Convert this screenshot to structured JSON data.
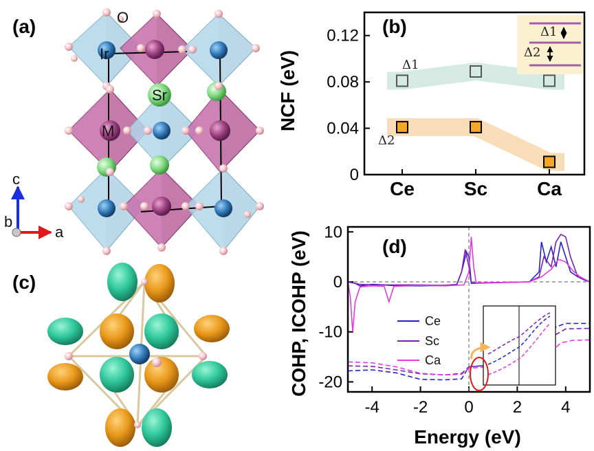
{
  "panels": {
    "a": {
      "label": "(a)",
      "atom_labels": {
        "oxygen": "O",
        "iridium": "Ir",
        "strontium": "Sr",
        "metal": "M"
      },
      "axes": {
        "c": "c",
        "b": "b",
        "a": "a"
      }
    },
    "b": {
      "label": "(b)"
    },
    "c": {
      "label": "(c)"
    },
    "d": {
      "label": "(d)"
    }
  },
  "colors": {
    "octa_blue": "#9ec8de",
    "octa_purple": "#b55a97",
    "ir_blue": "#2f78b8",
    "sr_green": "#7ed87e",
    "oxygen_pink": "#f2c2c8",
    "orbital_orange": "#e8991a",
    "orbital_teal": "#2ec79a",
    "ce_line": "#2323c8",
    "sc_line": "#7a1fb8",
    "ca_line": "#e33ae0",
    "delta1_band": "#cfe8df",
    "delta2_band": "#f8d9b0",
    "inset_bg": "#fbf1d0",
    "level_purple": "#a55ab0"
  },
  "chart_data": [
    {
      "type": "scatter",
      "panel": "b",
      "categories": [
        "Ce",
        "Sc",
        "Ca"
      ],
      "ylabel": "NCF (eV)",
      "ylim": [
        0,
        0.14
      ],
      "yticks": [
        "0",
        "0.04",
        "0.08",
        "0.12"
      ],
      "series": [
        {
          "name": "Δ1",
          "values": [
            0.081,
            0.089,
            0.081
          ],
          "color": "#808080"
        },
        {
          "name": "Δ2",
          "values": [
            0.041,
            0.041,
            0.011
          ],
          "color": "#f5a623"
        }
      ],
      "inset_labels": [
        "Δ1",
        "Δ2"
      ]
    },
    {
      "type": "line",
      "panel": "d",
      "xlabel": "Energy (eV)",
      "ylabel": "COHP, ICOHP (eV)",
      "xlim": [
        -5,
        5
      ],
      "ylim": [
        -22,
        11
      ],
      "xticks": [
        "-4",
        "-2",
        "0",
        "2",
        "4"
      ],
      "yticks": [
        "10",
        "0",
        "-10",
        "-20"
      ],
      "legend": [
        "Ce",
        "Sc",
        "Ca"
      ],
      "series": [
        {
          "name": "Ce",
          "color": "#2323c8",
          "cohp": [
            [
              -5,
              0
            ],
            [
              -4.7,
              -0.3
            ],
            [
              -4.5,
              -0.8
            ],
            [
              -4,
              -0.5
            ],
            [
              -3.5,
              -0.6
            ],
            [
              -3,
              -0.8
            ],
            [
              -2,
              -0.8
            ],
            [
              -1,
              -0.7
            ],
            [
              -0.5,
              -0.6
            ],
            [
              -0.3,
              2
            ],
            [
              -0.1,
              6
            ],
            [
              0,
              5
            ],
            [
              0.1,
              -0.2
            ],
            [
              2.5,
              0
            ],
            [
              2.9,
              2
            ],
            [
              3,
              8
            ],
            [
              3.2,
              4
            ],
            [
              3.4,
              7
            ],
            [
              3.6,
              3
            ],
            [
              3.8,
              8
            ],
            [
              4,
              5
            ],
            [
              4.2,
              2
            ],
            [
              4.5,
              1
            ],
            [
              4.8,
              0.3
            ],
            [
              5,
              0
            ]
          ],
          "icohp": [
            [
              -5,
              -17.8
            ],
            [
              -4,
              -17.6
            ],
            [
              -3,
              -18.2
            ],
            [
              -2,
              -19.5
            ],
            [
              -1,
              -19.6
            ],
            [
              -0.3,
              -19.4
            ],
            [
              0,
              -17
            ],
            [
              1,
              -16.6
            ],
            [
              2,
              -16.5
            ],
            [
              2.8,
              -16.5
            ],
            [
              3.2,
              -13
            ],
            [
              3.6,
              -9
            ],
            [
              4,
              -8.3
            ],
            [
              5,
              -8.3
            ]
          ]
        },
        {
          "name": "Sc",
          "color": "#7a1fb8",
          "cohp": [
            [
              -5,
              0
            ],
            [
              -4.5,
              -0.5
            ],
            [
              -4,
              -0.6
            ],
            [
              -3,
              -0.6
            ],
            [
              -2,
              -0.6
            ],
            [
              -1,
              -0.7
            ],
            [
              -0.5,
              -0.5
            ],
            [
              -0.3,
              2
            ],
            [
              -0.15,
              6.5
            ],
            [
              0,
              3
            ],
            [
              0.1,
              -0.3
            ],
            [
              2.5,
              0
            ],
            [
              2.9,
              1
            ],
            [
              3.1,
              5
            ],
            [
              3.4,
              3
            ],
            [
              3.6,
              8
            ],
            [
              3.8,
              9.5
            ],
            [
              4,
              9
            ],
            [
              4.2,
              5
            ],
            [
              4.5,
              1
            ],
            [
              5,
              0
            ]
          ],
          "icohp": [
            [
              -5,
              -16.8
            ],
            [
              -4,
              -16.9
            ],
            [
              -3,
              -17.6
            ],
            [
              -2,
              -18.4
            ],
            [
              -1,
              -18.6
            ],
            [
              -0.3,
              -18.3
            ],
            [
              0,
              -17
            ],
            [
              1,
              -16.6
            ],
            [
              2,
              -16.5
            ],
            [
              2.8,
              -16.4
            ],
            [
              3.2,
              -14
            ],
            [
              3.6,
              -10.5
            ],
            [
              4,
              -9.4
            ],
            [
              5,
              -9.3
            ]
          ]
        },
        {
          "name": "Ca",
          "color": "#e33ae0",
          "cohp": [
            [
              -5,
              0
            ],
            [
              -4.9,
              -3
            ],
            [
              -4.8,
              -10
            ],
            [
              -4.7,
              -4
            ],
            [
              -4.5,
              -1
            ],
            [
              -4,
              -0.8
            ],
            [
              -3.5,
              -0.9
            ],
            [
              -3.3,
              -4
            ],
            [
              -3.1,
              -0.9
            ],
            [
              -2,
              -0.7
            ],
            [
              -1,
              -0.8
            ],
            [
              -0.2,
              -0.6
            ],
            [
              0,
              2
            ],
            [
              0.1,
              9
            ],
            [
              0.2,
              3
            ],
            [
              0.3,
              -0.2
            ],
            [
              2.5,
              0
            ],
            [
              3,
              1
            ],
            [
              3.4,
              2.5
            ],
            [
              3.7,
              4.5
            ],
            [
              4,
              4
            ],
            [
              4.3,
              2.2
            ],
            [
              4.6,
              1
            ],
            [
              5,
              0
            ]
          ],
          "icohp": [
            [
              -5,
              -16
            ],
            [
              -4,
              -16.2
            ],
            [
              -3,
              -17
            ],
            [
              -2,
              -18.3
            ],
            [
              -1,
              -18.6
            ],
            [
              -0.3,
              -18.5
            ],
            [
              0,
              -17.3
            ],
            [
              1,
              -16.9
            ],
            [
              2,
              -16.8
            ],
            [
              2.8,
              -16.7
            ],
            [
              3.3,
              -14.5
            ],
            [
              3.8,
              -12.2
            ],
            [
              4.3,
              -11.7
            ],
            [
              5,
              -11.6
            ]
          ]
        }
      ]
    }
  ]
}
